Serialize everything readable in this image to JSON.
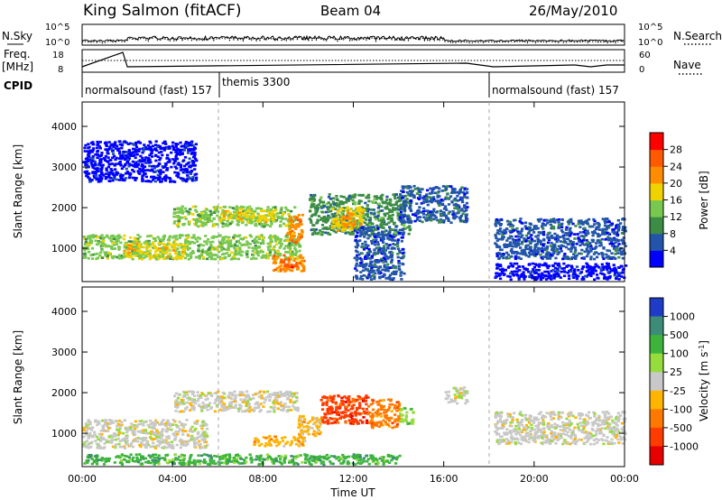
{
  "header": {
    "title": "King Salmon (fitACF)",
    "beam": "Beam 04",
    "date": "26/May/2010"
  },
  "small_panels": {
    "nsky_label": "N.Sky",
    "nsearch_label": "N.Search",
    "freq_label_1": "Freq.",
    "freq_label_2": "[MHz]",
    "nave_label": "Nave",
    "cpid_label": "CPID",
    "noise_left_ticks": [
      "10^5",
      "10^0"
    ],
    "noise_right_ticks": [
      "10^5",
      "10^0"
    ],
    "freq_left_ticks": [
      "18",
      "8"
    ],
    "freq_right_ticks": [
      "60",
      "0"
    ],
    "cpid_segments": [
      {
        "label": "normalsound (fast) 157",
        "start_hr": 0.0,
        "end_hr": 6.0
      },
      {
        "label": "themis 3300",
        "start_hr": 6.0,
        "end_hr": 18.0
      },
      {
        "label": "normalsound (fast) 157",
        "start_hr": 18.0,
        "end_hr": 24.0
      }
    ]
  },
  "axes": {
    "xlabel": "Time UT",
    "x_ticks": [
      "00:00",
      "04:00",
      "08:00",
      "12:00",
      "16:00",
      "20:00",
      "00:00"
    ],
    "x_tick_hours": [
      0,
      4,
      8,
      12,
      16,
      20,
      24
    ],
    "ylabel": "Slant Range [km]",
    "y_ticks": [
      "1000",
      "2000",
      "3000",
      "4000"
    ],
    "y_tick_values": [
      1000,
      2000,
      3000,
      4000
    ],
    "ylim": [
      180,
      4600
    ]
  },
  "power_colorbar": {
    "label": "Power [dB]",
    "tick_labels": [
      "4",
      "8",
      "12",
      "16",
      "20",
      "24",
      "28"
    ],
    "colors": [
      "#0000ff",
      "#2255aa",
      "#3c8c46",
      "#78c850",
      "#f0d200",
      "#ff8c00",
      "#ff5a00",
      "#ff0000"
    ]
  },
  "velocity_colorbar": {
    "label": "Velocity [m s",
    "label_sup": "-1",
    "label_end": "]",
    "tick_labels": [
      "1000",
      "500",
      "100",
      "25",
      "-25",
      "-100",
      "-500",
      "-1000"
    ],
    "colors": [
      "#1e3cc8",
      "#3c8c78",
      "#3cb43c",
      "#96dc3c",
      "#c8c8c8",
      "#ffb400",
      "#ff7800",
      "#ff3c00",
      "#e60000"
    ]
  },
  "chart_data": {
    "type": "heatmap",
    "title": "King Salmon (fitACF)",
    "xlabel": "Time UT",
    "ylabel": "Slant Range [km]",
    "xlim": [
      0,
      24
    ],
    "ylim": [
      180,
      4600
    ],
    "panels": [
      {
        "name": "Power [dB]",
        "regions": [
          {
            "t0": 0.0,
            "t1": 9.6,
            "r0": 700,
            "r1": 1300,
            "level": 3
          },
          {
            "t0": 1.8,
            "t1": 4.5,
            "r0": 700,
            "r1": 1100,
            "level": 4
          },
          {
            "t0": 4.0,
            "t1": 9.5,
            "r0": 1500,
            "r1": 2000,
            "level": 3
          },
          {
            "t0": 6.0,
            "t1": 8.5,
            "r0": 1600,
            "r1": 1900,
            "level": 4
          },
          {
            "t0": 8.4,
            "t1": 9.8,
            "r0": 400,
            "r1": 800,
            "level": 5
          },
          {
            "t0": 8.8,
            "t1": 9.6,
            "r0": 500,
            "r1": 700,
            "level": 6
          },
          {
            "t0": 9.0,
            "t1": 9.7,
            "r0": 1100,
            "r1": 1800,
            "level": 5
          },
          {
            "t0": 10.0,
            "t1": 14.5,
            "r0": 1300,
            "r1": 2300,
            "level": 2
          },
          {
            "t0": 11.0,
            "t1": 12.4,
            "r0": 1400,
            "r1": 2000,
            "level": 4
          },
          {
            "t0": 11.4,
            "t1": 12.0,
            "r0": 1500,
            "r1": 1900,
            "level": 5
          },
          {
            "t0": 12.0,
            "t1": 14.2,
            "r0": 200,
            "r1": 1500,
            "level": 1
          },
          {
            "t0": 14.0,
            "t1": 17.0,
            "r0": 1600,
            "r1": 2500,
            "level": 1
          },
          {
            "t0": 0.0,
            "t1": 5.0,
            "r0": 2600,
            "r1": 3600,
            "level": 0
          },
          {
            "t0": 18.2,
            "t1": 24.0,
            "r0": 700,
            "r1": 1700,
            "level": 1
          },
          {
            "t0": 18.2,
            "t1": 24.0,
            "r0": 200,
            "r1": 600,
            "level": 0
          }
        ]
      },
      {
        "name": "Velocity [m s-1]",
        "regions": [
          {
            "t0": 0.0,
            "t1": 5.5,
            "r0": 600,
            "r1": 1300,
            "level": 4
          },
          {
            "t0": 4.0,
            "t1": 9.5,
            "r0": 1500,
            "r1": 2000,
            "level": 4
          },
          {
            "t0": 7.5,
            "t1": 9.8,
            "r0": 650,
            "r1": 900,
            "level": 5
          },
          {
            "t0": 9.5,
            "t1": 10.5,
            "r0": 900,
            "r1": 1400,
            "level": 5
          },
          {
            "t0": 10.5,
            "t1": 12.6,
            "r0": 1200,
            "r1": 1900,
            "level": 7
          },
          {
            "t0": 12.6,
            "t1": 14.0,
            "r0": 1100,
            "r1": 1800,
            "level": 6
          },
          {
            "t0": 14.0,
            "t1": 14.6,
            "r0": 1200,
            "r1": 1600,
            "level": 3
          },
          {
            "t0": 16.0,
            "t1": 17.0,
            "r0": 1700,
            "r1": 2100,
            "level": 4
          },
          {
            "t0": 18.2,
            "t1": 24.0,
            "r0": 700,
            "r1": 1500,
            "level": 4
          },
          {
            "t0": 0.0,
            "t1": 14.0,
            "r0": 200,
            "r1": 450,
            "level": 2
          }
        ]
      }
    ]
  }
}
